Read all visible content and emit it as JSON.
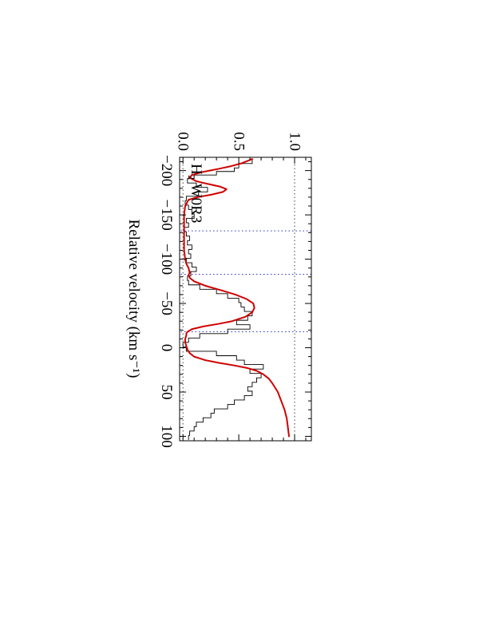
{
  "chart_data": {
    "type": "line",
    "orientation": "rotated 90 degrees clockwise",
    "annotation": "H₂ W0R3",
    "xlabel": "Relative velocity (km s⁻¹)",
    "ylabel": "",
    "xlim": [
      -215,
      105
    ],
    "ylim": [
      -0.03,
      1.15
    ],
    "x_ticks": [
      -200,
      -150,
      -100,
      -50,
      0,
      50,
      100
    ],
    "x_tick_labels": [
      "−200",
      "−150",
      "−100",
      "−50",
      "0",
      "50",
      "100"
    ],
    "y_ticks": [
      0.0,
      0.5,
      1.0
    ],
    "y_tick_labels": [
      "0.0",
      "0.5",
      "1.0"
    ],
    "reference_lines_y": [
      0.0,
      1.0
    ],
    "component_markers_x": [
      -132,
      -83,
      -18
    ],
    "colors": {
      "observed": "#000000",
      "model": "#d00000",
      "reference": "#444444",
      "markers": "#3333cc"
    },
    "series": [
      {
        "style": "histogram",
        "x": [
          -213,
          -208,
          -203,
          -199,
          -195,
          -191,
          -186,
          -181,
          -176,
          -171,
          -166,
          -161,
          -156,
          -151,
          -146,
          -141,
          -136,
          -131,
          -126,
          -121,
          -116,
          -111,
          -106,
          -101,
          -96,
          -91,
          -86,
          -81,
          -76,
          -71,
          -66,
          -61,
          -56,
          -51,
          -46,
          -41,
          -36,
          -31,
          -26,
          -21,
          -16,
          -11,
          -6,
          -1,
          4,
          9,
          14,
          19,
          24,
          29,
          34,
          39,
          44,
          49,
          54,
          59,
          64,
          69,
          74,
          79,
          84,
          89,
          94,
          99
        ],
        "y": [
          0.62,
          0.5,
          0.46,
          0.3,
          0.1,
          0.04,
          0.12,
          0.22,
          0.14,
          0.03,
          0.02,
          0.05,
          0.08,
          0.1,
          0.03,
          0.05,
          0.01,
          0.03,
          0.06,
          0.04,
          0.08,
          0.05,
          0.07,
          0.03,
          0.08,
          0.12,
          0.07,
          0.04,
          0.05,
          0.15,
          0.3,
          0.4,
          0.5,
          0.52,
          0.55,
          0.62,
          0.58,
          0.48,
          0.6,
          0.4,
          0.15,
          0.05,
          0.0,
          0.03,
          0.3,
          0.48,
          0.55,
          0.72,
          0.6,
          0.7,
          0.66,
          0.62,
          0.58,
          0.62,
          0.55,
          0.46,
          0.4,
          0.28,
          0.25,
          0.18,
          0.12,
          0.1,
          0.06,
          0.05
        ]
      },
      {
        "style": "smooth",
        "x": [
          -213,
          -208,
          -205,
          -202,
          -200,
          -198,
          -195,
          -192,
          -188,
          -185,
          -182,
          -179,
          -176,
          -173,
          -170,
          -167,
          -160,
          -150,
          -140,
          -130,
          -120,
          -110,
          -100,
          -95,
          -90,
          -85,
          -82,
          -79,
          -75,
          -70,
          -65,
          -60,
          -55,
          -50,
          -45,
          -40,
          -35,
          -30,
          -27,
          -24,
          -21,
          -18,
          -16,
          -14,
          -10,
          -6,
          -2,
          2,
          6,
          10,
          14,
          17,
          20,
          23,
          26,
          30,
          35,
          40,
          50,
          60,
          70,
          80,
          90,
          100
        ],
        "y": [
          0.62,
          0.52,
          0.43,
          0.32,
          0.24,
          0.16,
          0.08,
          0.06,
          0.12,
          0.22,
          0.33,
          0.39,
          0.36,
          0.26,
          0.13,
          0.05,
          0.02,
          0.01,
          0.01,
          0.01,
          0.01,
          0.01,
          0.02,
          0.03,
          0.05,
          0.06,
          0.05,
          0.06,
          0.1,
          0.2,
          0.34,
          0.47,
          0.57,
          0.63,
          0.64,
          0.62,
          0.56,
          0.44,
          0.32,
          0.18,
          0.08,
          0.04,
          0.03,
          0.03,
          0.02,
          0.02,
          0.03,
          0.04,
          0.06,
          0.1,
          0.2,
          0.32,
          0.46,
          0.58,
          0.66,
          0.72,
          0.77,
          0.8,
          0.85,
          0.88,
          0.91,
          0.93,
          0.94,
          0.95
        ]
      }
    ]
  }
}
